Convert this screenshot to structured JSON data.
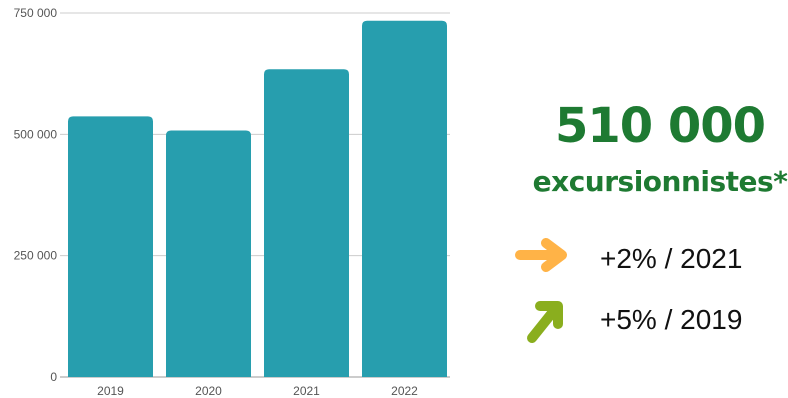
{
  "chart_data": {
    "type": "bar",
    "categories": [
      "2019",
      "2020",
      "2021",
      "2022"
    ],
    "values": [
      537000,
      508000,
      634000,
      734000
    ],
    "ylim": [
      0,
      750000
    ],
    "yticks": [
      0,
      250000,
      500000,
      750000
    ],
    "ytick_labels": [
      "0",
      "250 000",
      "500 000",
      "750 000"
    ],
    "grid": true,
    "bar_color": "#279eae"
  },
  "stats": {
    "headline_value": "510 000",
    "headline_label": "excursionnistes*",
    "headline_color": "#1e7a32",
    "changes": [
      {
        "text": "+2% / 2021",
        "arrow_icon": "arrow-right-icon",
        "arrow_color": "#ffb347"
      },
      {
        "text": "+5% / 2019",
        "arrow_icon": "arrow-up-right-icon",
        "arrow_color": "#8aae1e"
      }
    ]
  }
}
